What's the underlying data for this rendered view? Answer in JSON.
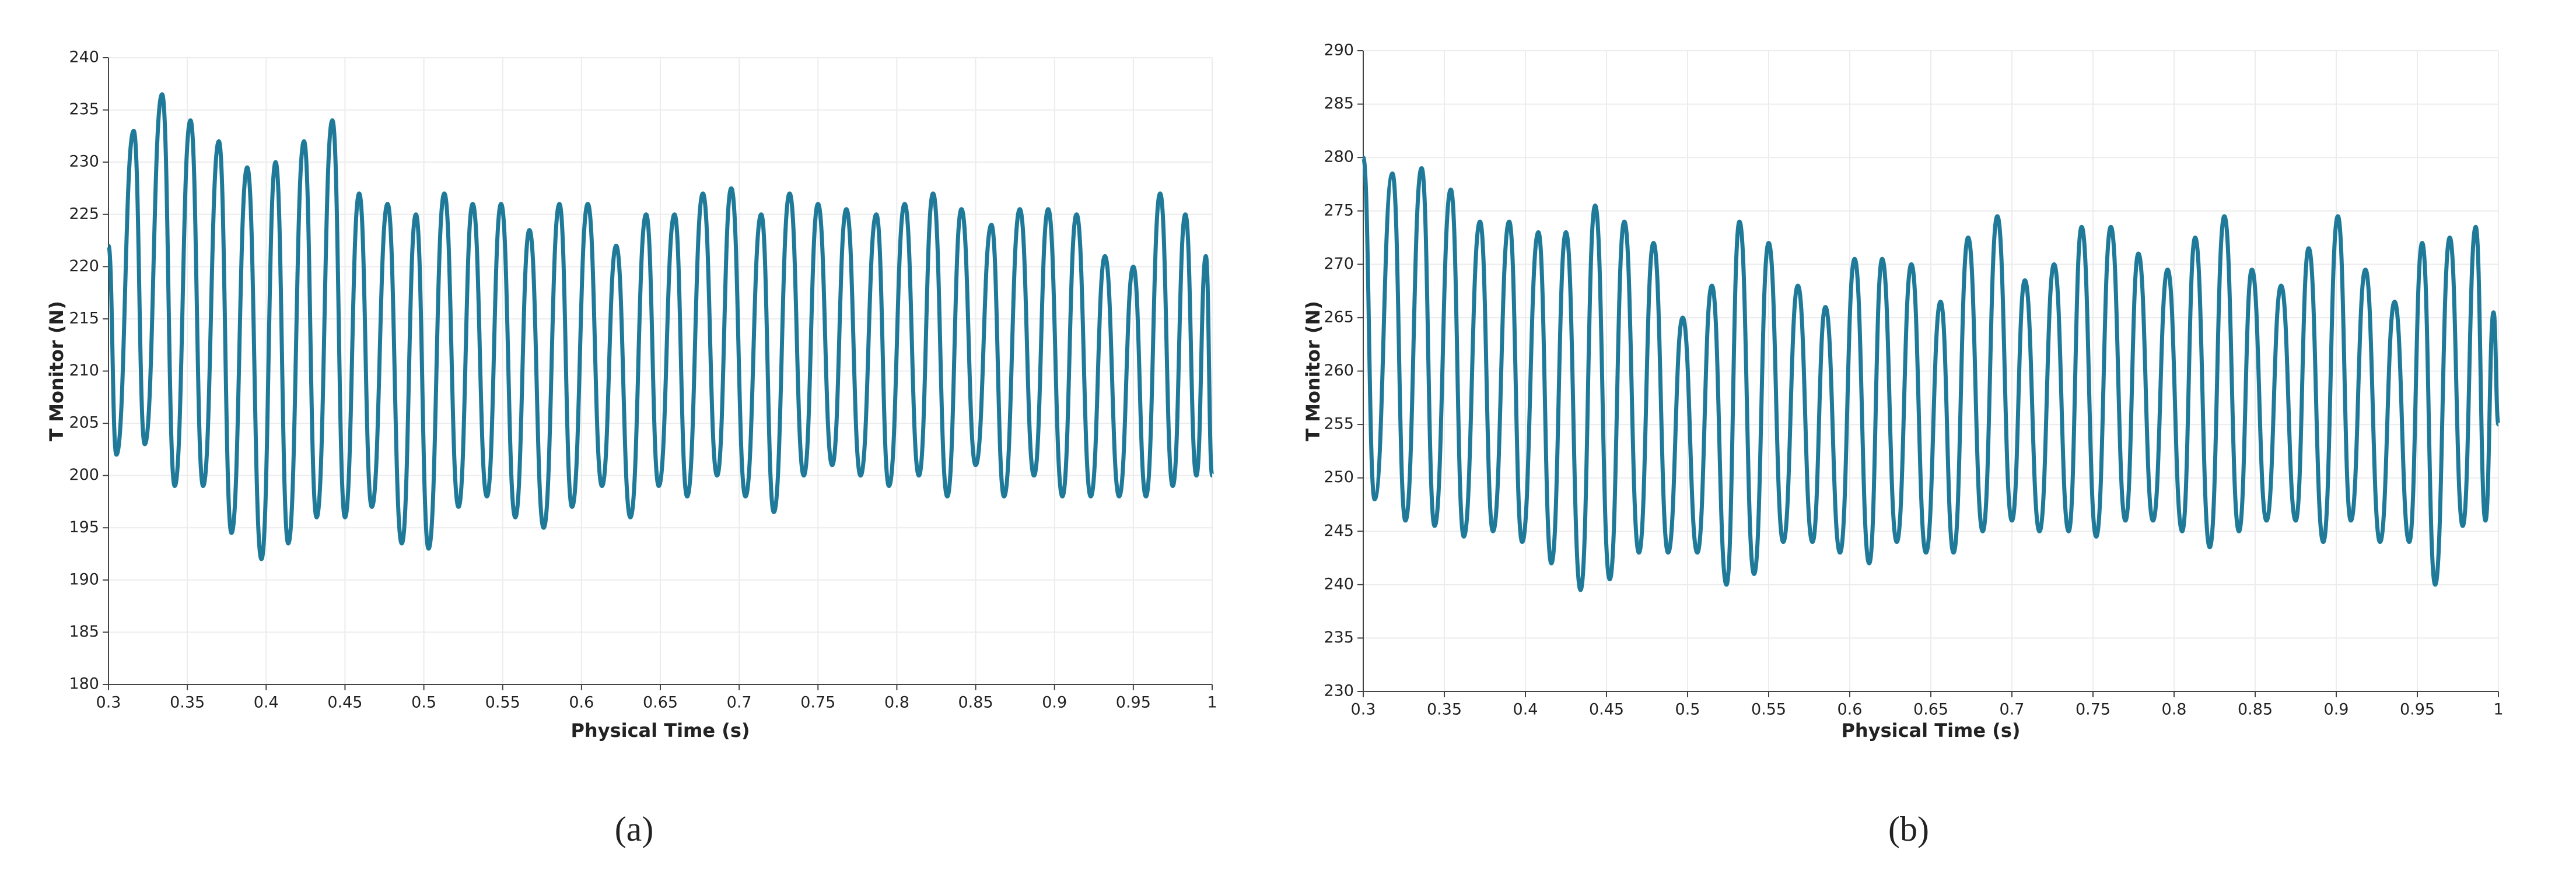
{
  "chart_data": [
    {
      "type": "line",
      "caption": "(a)",
      "x_label": "Physical Time (s)",
      "y_label": "T Monitor (N)",
      "xlim": [
        0.3,
        1
      ],
      "ylim": [
        180,
        240
      ],
      "xticks": [
        0.3,
        0.35,
        0.4,
        0.45,
        0.5,
        0.55,
        0.6,
        0.65,
        0.7,
        0.75,
        0.8,
        0.85,
        0.9,
        0.95,
        1
      ],
      "yticks": [
        180,
        185,
        190,
        195,
        200,
        205,
        210,
        215,
        220,
        225,
        230,
        235,
        240
      ],
      "grid": true,
      "series": [
        {
          "color": "#1f7a99",
          "x": [
            0.3,
            0.305,
            0.316,
            0.323,
            0.334,
            0.342,
            0.352,
            0.36,
            0.37,
            0.378,
            0.388,
            0.397,
            0.406,
            0.414,
            0.424,
            0.432,
            0.442,
            0.45,
            0.459,
            0.467,
            0.477,
            0.486,
            0.495,
            0.503,
            0.513,
            0.522,
            0.531,
            0.54,
            0.549,
            0.558,
            0.567,
            0.576,
            0.586,
            0.594,
            0.604,
            0.613,
            0.622,
            0.631,
            0.641,
            0.649,
            0.659,
            0.667,
            0.677,
            0.686,
            0.695,
            0.704,
            0.714,
            0.722,
            0.732,
            0.741,
            0.75,
            0.759,
            0.768,
            0.777,
            0.787,
            0.795,
            0.805,
            0.814,
            0.823,
            0.832,
            0.841,
            0.85,
            0.86,
            0.868,
            0.878,
            0.887,
            0.896,
            0.905,
            0.914,
            0.923,
            0.932,
            0.941,
            0.95,
            0.958,
            0.967,
            0.975,
            0.983,
            0.99,
            0.996,
            1
          ],
          "values": [
            222,
            202,
            233,
            203,
            236.5,
            199,
            234,
            199,
            232,
            194.5,
            229.5,
            192,
            230,
            193.5,
            232,
            196,
            234,
            196,
            227,
            197,
            226,
            193.5,
            225,
            193,
            227,
            197,
            226,
            198,
            226,
            196,
            223.5,
            195,
            226,
            197,
            226,
            199,
            222,
            196,
            225,
            199,
            225,
            198,
            227,
            200,
            227.5,
            198,
            225,
            196.5,
            227,
            200,
            226,
            201,
            225.5,
            200,
            225,
            199,
            226,
            200,
            227,
            198,
            225.5,
            201,
            224,
            198,
            225.5,
            200,
            225.5,
            198,
            225,
            198,
            221,
            198,
            220,
            198,
            227,
            199,
            225,
            200,
            221,
            200
          ]
        }
      ]
    },
    {
      "type": "line",
      "caption": "(b)",
      "x_label": "Physical Time (s)",
      "y_label": "T Monitor (N)",
      "xlim": [
        0.3,
        1
      ],
      "ylim": [
        230,
        290
      ],
      "xticks": [
        0.3,
        0.35,
        0.4,
        0.45,
        0.5,
        0.55,
        0.6,
        0.65,
        0.7,
        0.75,
        0.8,
        0.85,
        0.9,
        0.95,
        1
      ],
      "yticks": [
        230,
        235,
        240,
        245,
        250,
        255,
        260,
        265,
        270,
        275,
        280,
        285,
        290
      ],
      "grid": true,
      "series": [
        {
          "color": "#1f7a99",
          "x": [
            0.3,
            0.307,
            0.318,
            0.326,
            0.336,
            0.344,
            0.354,
            0.362,
            0.372,
            0.38,
            0.39,
            0.398,
            0.408,
            0.416,
            0.425,
            0.434,
            0.443,
            0.452,
            0.461,
            0.47,
            0.479,
            0.488,
            0.497,
            0.506,
            0.515,
            0.524,
            0.532,
            0.541,
            0.55,
            0.559,
            0.568,
            0.577,
            0.585,
            0.594,
            0.603,
            0.612,
            0.62,
            0.629,
            0.638,
            0.647,
            0.656,
            0.664,
            0.673,
            0.682,
            0.691,
            0.7,
            0.708,
            0.717,
            0.726,
            0.735,
            0.743,
            0.752,
            0.761,
            0.77,
            0.778,
            0.787,
            0.796,
            0.805,
            0.813,
            0.822,
            0.831,
            0.84,
            0.848,
            0.857,
            0.866,
            0.875,
            0.883,
            0.892,
            0.901,
            0.909,
            0.918,
            0.927,
            0.936,
            0.945,
            0.953,
            0.961,
            0.97,
            0.978,
            0.986,
            0.992,
            0.997,
            1
          ],
          "values": [
            280,
            248,
            278.5,
            246,
            279,
            245.5,
            277,
            244.5,
            274,
            245,
            274,
            244,
            273,
            242,
            273,
            239.5,
            275.5,
            240.5,
            274,
            243,
            272,
            243,
            265,
            243,
            268,
            240,
            274,
            241,
            272,
            244,
            268,
            244,
            266,
            243,
            270.5,
            242,
            270.5,
            244,
            270,
            243,
            266.5,
            243,
            272.5,
            245,
            274.5,
            246,
            268.5,
            245,
            270,
            245,
            273.5,
            244.5,
            273.5,
            246,
            271,
            246,
            269.5,
            245,
            272.5,
            243.5,
            274.5,
            245,
            269.5,
            246,
            268,
            246,
            271.5,
            244,
            274.5,
            246,
            269.5,
            244,
            266.5,
            244,
            272,
            240,
            272.5,
            245.5,
            273.5,
            246,
            265.5,
            255
          ]
        }
      ]
    }
  ]
}
